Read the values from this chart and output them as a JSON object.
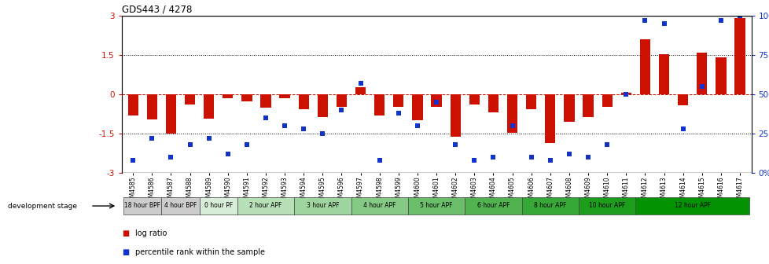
{
  "title": "GDS443 / 4278",
  "samples": [
    "GSM4585",
    "GSM4586",
    "GSM4587",
    "GSM4588",
    "GSM4589",
    "GSM4590",
    "GSM4591",
    "GSM4592",
    "GSM4593",
    "GSM4594",
    "GSM4595",
    "GSM4596",
    "GSM4597",
    "GSM4598",
    "GSM4599",
    "GSM4600",
    "GSM4601",
    "GSM4602",
    "GSM4603",
    "GSM4604",
    "GSM4605",
    "GSM4606",
    "GSM4607",
    "GSM4608",
    "GSM4609",
    "GSM4610",
    "GSM4611",
    "GSM4612",
    "GSM4613",
    "GSM4614",
    "GSM4615",
    "GSM4616",
    "GSM4617"
  ],
  "log_ratio": [
    -0.82,
    -0.95,
    -1.5,
    -0.38,
    -0.92,
    -0.14,
    -0.28,
    -0.5,
    -0.14,
    -0.58,
    -0.88,
    -0.48,
    0.28,
    -0.8,
    -0.48,
    -1.0,
    -0.48,
    -1.62,
    -0.38,
    -0.7,
    -1.48,
    -0.58,
    -1.85,
    -1.05,
    -0.88,
    -0.48,
    0.05,
    2.1,
    1.52,
    -0.43,
    1.6,
    1.42,
    2.9
  ],
  "percentile": [
    8,
    22,
    10,
    18,
    22,
    12,
    18,
    35,
    30,
    28,
    25,
    40,
    57,
    8,
    38,
    30,
    45,
    18,
    8,
    10,
    30,
    10,
    8,
    12,
    10,
    18,
    50,
    97,
    95,
    28,
    55,
    97,
    100
  ],
  "groups": [
    {
      "label": "18 hour BPF",
      "start": 0,
      "end": 2,
      "color": "#cccccc"
    },
    {
      "label": "4 hour BPF",
      "start": 2,
      "end": 4,
      "color": "#cccccc"
    },
    {
      "label": "0 hour PF",
      "start": 4,
      "end": 6,
      "color": "#d8edd8"
    },
    {
      "label": "2 hour APF",
      "start": 6,
      "end": 9,
      "color": "#b8e0b8"
    },
    {
      "label": "3 hour APF",
      "start": 9,
      "end": 12,
      "color": "#9ed49e"
    },
    {
      "label": "4 hour APF",
      "start": 12,
      "end": 15,
      "color": "#84c984"
    },
    {
      "label": "5 hour APF",
      "start": 15,
      "end": 18,
      "color": "#6abe6a"
    },
    {
      "label": "6 hour APF",
      "start": 18,
      "end": 21,
      "color": "#50b350"
    },
    {
      "label": "8 hour APF",
      "start": 21,
      "end": 24,
      "color": "#36a836"
    },
    {
      "label": "10 hour APF",
      "start": 24,
      "end": 27,
      "color": "#1c9d1c"
    },
    {
      "label": "12 hour APF",
      "start": 27,
      "end": 33,
      "color": "#029202"
    }
  ],
  "bar_color": "#cc1100",
  "dot_color": "#1133cc",
  "bg_color": "#ffffff",
  "ylim": [
    -3.0,
    3.0
  ],
  "yticks_left": [
    -3.0,
    -1.5,
    0.0,
    1.5,
    3.0
  ],
  "ytick_left_labels": [
    "-3",
    "-1.5",
    "0",
    "1.5",
    "3"
  ],
  "yticks_right": [
    0,
    25,
    50,
    75,
    100
  ],
  "ytick_right_labels": [
    "0%",
    "25",
    "50",
    "75",
    "100%"
  ],
  "dev_stage_label": "development stage",
  "legend_bar": "log ratio",
  "legend_dot": "percentile rank within the sample"
}
